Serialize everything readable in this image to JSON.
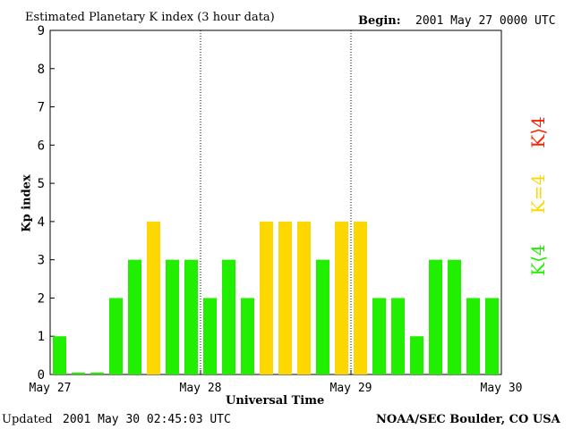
{
  "header": {
    "title": "Estimated Planetary K index (3 hour data)",
    "begin_label": "Begin:",
    "begin_value": "2001 May 27 0000 UTC"
  },
  "footer": {
    "updated_label": "Updated",
    "updated_value": "2001 May 30 02:45:03 UTC",
    "source": "NOAA/SEC Boulder, CO USA"
  },
  "legend": {
    "high": {
      "label": "K⟩4",
      "color": "#ff2000"
    },
    "equal": {
      "label": "K=4",
      "color": "#ffd700"
    },
    "low": {
      "label": "K⟨4",
      "color": "#22ee00"
    }
  },
  "chart_data": {
    "type": "bar",
    "title": "Estimated Planetary K index (3 hour data)",
    "xlabel": "Universal Time",
    "ylabel": "Kp index",
    "ylim": [
      0,
      9
    ],
    "yticks": [
      0,
      1,
      2,
      3,
      4,
      5,
      6,
      7,
      8,
      9
    ],
    "xticks": [
      "May 27",
      "May 28",
      "May 29",
      "May 30"
    ],
    "intervals_per_day": 8,
    "day_separators": "dotted",
    "values": [
      1,
      0.05,
      0.05,
      2,
      3,
      4,
      3,
      3,
      2,
      3,
      2,
      4,
      4,
      4,
      3,
      4,
      4,
      2,
      2,
      1,
      3,
      3,
      2,
      2
    ],
    "colors": {
      "below_4": "#22ee00",
      "equal_4": "#ffd700",
      "above_4": "#ff2000"
    }
  }
}
